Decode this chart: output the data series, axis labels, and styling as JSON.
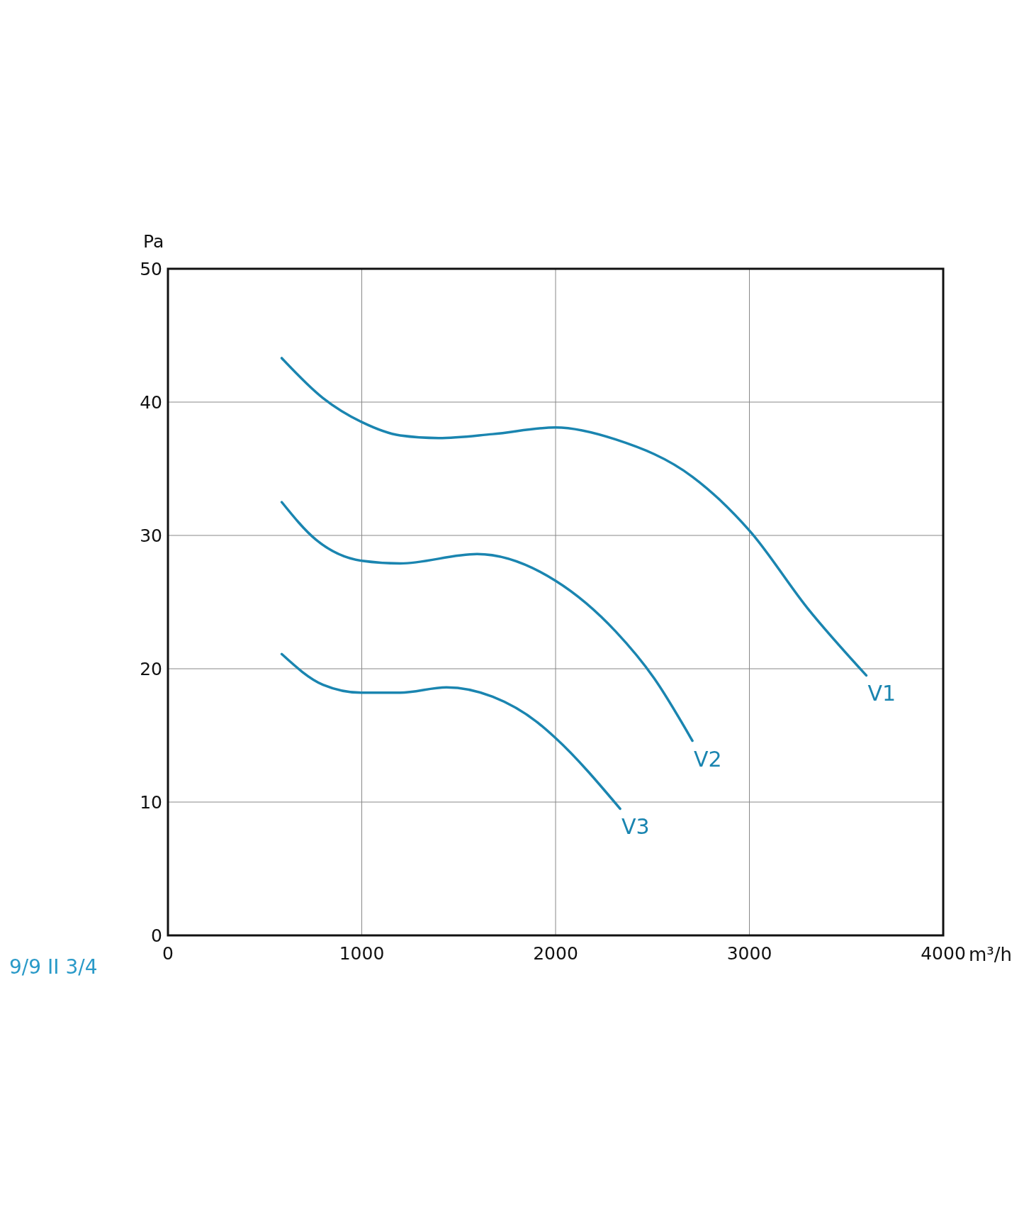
{
  "chart_data": {
    "type": "line",
    "xlabel": "m³/h",
    "ylabel": "Pa",
    "xlim": [
      0,
      4000
    ],
    "ylim": [
      0,
      50
    ],
    "xticks": [
      0,
      1000,
      2000,
      3000,
      4000
    ],
    "yticks": [
      0,
      10,
      20,
      30,
      40,
      50
    ],
    "grid": true,
    "line_style": "solid",
    "marker": "none",
    "annotations": [
      "9/9 II 3/4"
    ],
    "series": [
      {
        "name": "V1",
        "color": "#1a85b0",
        "x": [
          587,
          800,
          1000,
          1198,
          1397,
          1675,
          2000,
          2310,
          2706,
          3004,
          3302,
          3603
        ],
        "values": [
          43.3,
          40.3,
          38.5,
          37.5,
          37.3,
          37.6,
          38.1,
          37.2,
          34.4,
          30.3,
          24.5,
          19.5
        ]
      },
      {
        "name": "V2",
        "color": "#1a85b0",
        "x": [
          587,
          762,
          1000,
          1198,
          1595,
          2000,
          2310,
          2508,
          2706
        ],
        "values": [
          32.5,
          29.7,
          28.1,
          27.9,
          28.6,
          26.6,
          22.8,
          19.3,
          14.6
        ]
      },
      {
        "name": "V3",
        "color": "#1a85b0",
        "x": [
          587,
          800,
          1000,
          1198,
          1437,
          1675,
          1913,
          2000,
          2333
        ],
        "values": [
          21.1,
          18.8,
          18.2,
          18.2,
          18.6,
          17.9,
          15.9,
          14.8,
          9.5
        ]
      }
    ]
  }
}
